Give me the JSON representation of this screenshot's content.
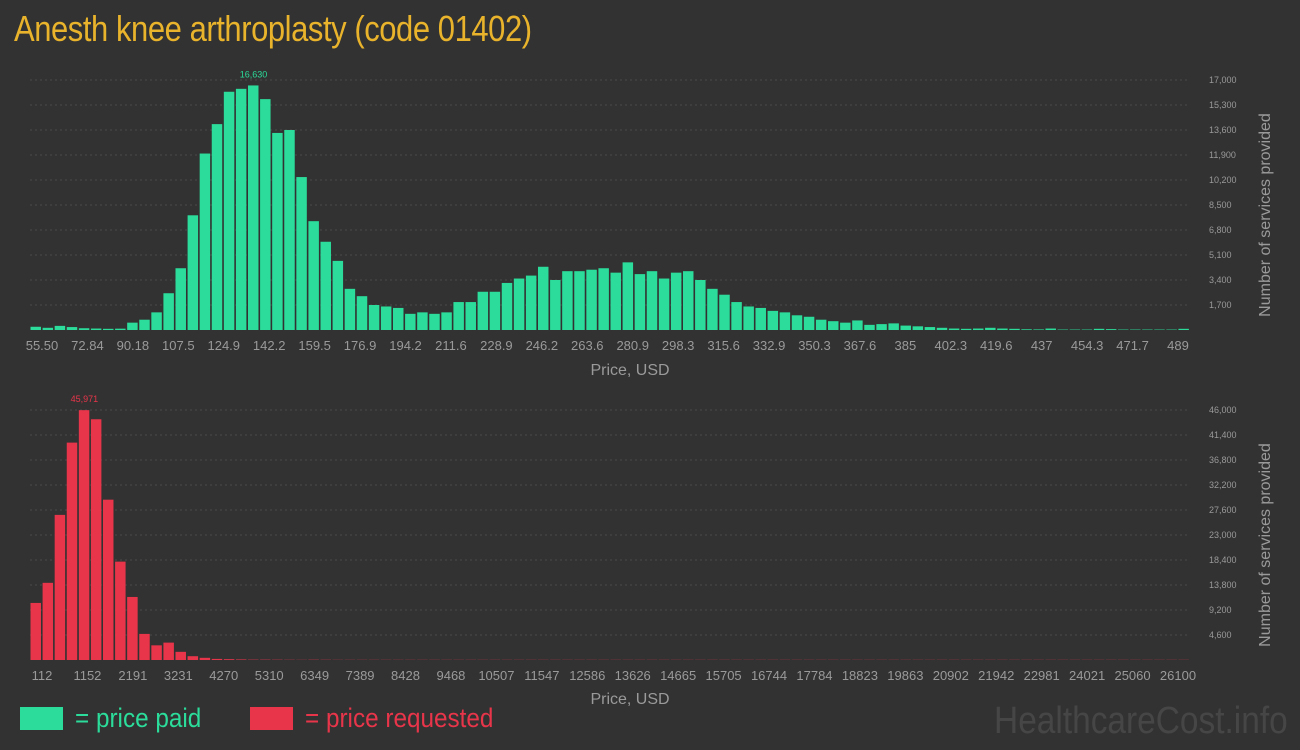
{
  "title": "Anesth knee arthroplasty (code 01402)",
  "colors": {
    "paid": "#2bdc9a",
    "requested": "#e8354a",
    "title": "#e9b42b",
    "background": "#323232",
    "axis_text": "#9a9a9a",
    "grid": "#4a4a4a"
  },
  "legend": {
    "paid": "= price paid",
    "requested": "= price requested"
  },
  "watermark": "HealthcareCost.info",
  "chart_data": [
    {
      "type": "bar",
      "series": [
        {
          "name": "price paid"
        }
      ],
      "xlabel": "Price, USD",
      "ylabel": "Number of services provided",
      "x_ticks": [
        "55.50",
        "72.84",
        "90.18",
        "107.5",
        "124.9",
        "142.2",
        "159.5",
        "176.9",
        "194.2",
        "211.6",
        "228.9",
        "246.2",
        "263.6",
        "280.9",
        "298.3",
        "315.6",
        "332.9",
        "350.3",
        "367.6",
        "385",
        "402.3",
        "419.6",
        "437",
        "454.3",
        "471.7",
        "489"
      ],
      "y_ticks": [
        "1,700",
        "3,400",
        "5,100",
        "6,800",
        "8,500",
        "10,200",
        "11,900",
        "13,600",
        "15,300",
        "17,000"
      ],
      "ylim": [
        0,
        17000
      ],
      "max_label": "16,630",
      "values": [
        220,
        150,
        280,
        200,
        120,
        100,
        80,
        90,
        500,
        700,
        1200,
        2500,
        4200,
        7800,
        12000,
        14000,
        16200,
        16400,
        16630,
        15700,
        13400,
        13600,
        10400,
        7400,
        6000,
        4700,
        2800,
        2300,
        1700,
        1600,
        1500,
        1100,
        1200,
        1100,
        1200,
        1900,
        1900,
        2600,
        2600,
        3200,
        3500,
        3700,
        4300,
        3400,
        4000,
        4000,
        4100,
        4200,
        3900,
        4600,
        3800,
        4000,
        3500,
        3900,
        4000,
        3400,
        2800,
        2400,
        1900,
        1600,
        1500,
        1300,
        1200,
        1000,
        900,
        700,
        600,
        500,
        650,
        350,
        400,
        450,
        300,
        250,
        200,
        150,
        100,
        80,
        100,
        150,
        100,
        80,
        50,
        40,
        100,
        30,
        30,
        30,
        80,
        60,
        30,
        30,
        30,
        30,
        30,
        80
      ]
    },
    {
      "type": "bar",
      "series": [
        {
          "name": "price requested"
        }
      ],
      "xlabel": "Price, USD",
      "ylabel": "Number of services provided",
      "x_ticks": [
        "112",
        "1152",
        "2191",
        "3231",
        "4270",
        "5310",
        "6349",
        "7389",
        "8428",
        "9468",
        "10507",
        "11547",
        "12586",
        "13626",
        "14665",
        "15705",
        "16744",
        "17784",
        "18823",
        "19863",
        "20902",
        "21942",
        "22981",
        "24021",
        "25060",
        "26100"
      ],
      "y_ticks": [
        "4,600",
        "9,200",
        "13,800",
        "18,400",
        "23,000",
        "27,600",
        "32,200",
        "36,800",
        "41,400",
        "46,000"
      ],
      "ylim": [
        0,
        46000
      ],
      "max_label": "45,971",
      "values": [
        10500,
        14200,
        26700,
        40000,
        45971,
        44300,
        29500,
        18100,
        11600,
        4800,
        2700,
        3200,
        1500,
        700,
        400,
        200,
        150,
        100,
        60,
        60,
        50,
        40,
        30,
        50,
        40,
        30,
        30,
        30,
        30,
        30,
        30,
        30,
        30,
        30,
        30,
        30,
        30,
        30,
        30,
        30,
        30,
        30,
        30,
        30,
        30,
        30,
        30,
        30,
        30,
        30,
        30,
        30,
        30,
        30,
        30,
        30,
        30,
        30,
        30,
        30,
        30,
        30,
        30,
        30,
        30,
        30,
        30,
        30,
        30,
        30,
        30,
        30,
        30,
        30,
        30,
        30,
        30,
        30,
        30,
        30,
        30,
        30,
        30,
        30,
        30,
        30,
        30,
        30,
        30,
        30,
        30,
        30,
        30,
        30,
        30,
        30
      ]
    }
  ]
}
